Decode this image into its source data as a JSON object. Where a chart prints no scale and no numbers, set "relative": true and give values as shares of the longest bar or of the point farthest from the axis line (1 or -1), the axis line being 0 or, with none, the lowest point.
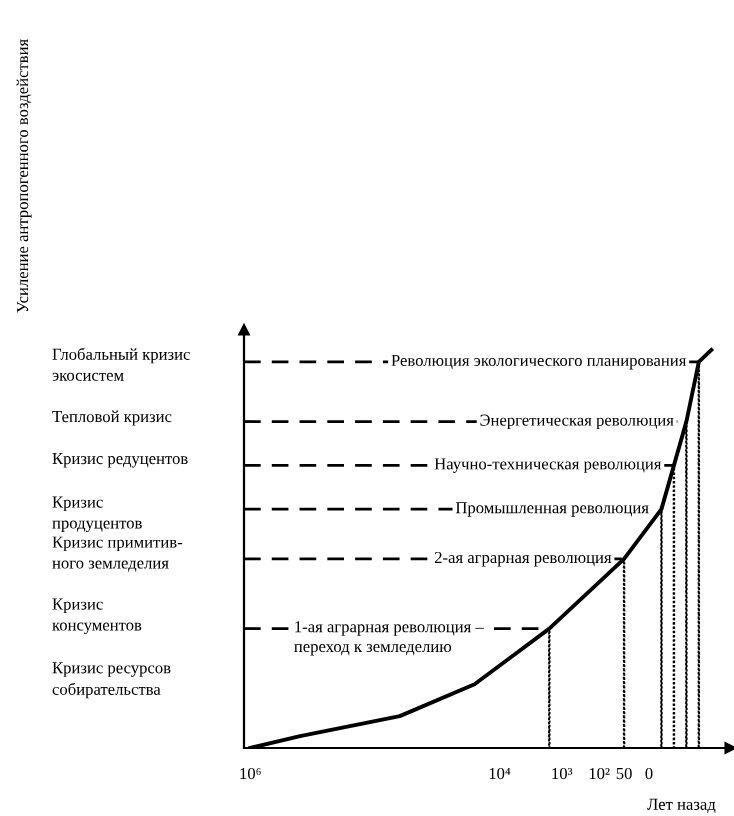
{
  "chart_data": {
    "type": "line",
    "relative": true,
    "xlabel": "Лет назад",
    "categories": [
      "10⁶",
      null,
      null,
      null,
      null,
      null,
      null,
      null,
      null,
      null,
      null,
      null,
      null,
      null,
      null,
      null,
      null,
      null,
      null,
      null,
      "10⁴",
      null,
      null,
      null,
      null,
      "10³",
      null,
      null,
      "10²",
      null,
      "50",
      null,
      "0",
      null,
      null,
      null,
      null,
      null,
      null
    ],
    "series": [
      {
        "color": "#000000",
        "values": [
          0,
          null,
          null,
          null,
          0.03,
          null,
          null,
          null,
          null,
          null,
          null,
          null,
          0.08,
          null,
          null,
          null,
          null,
          null,
          0.16,
          null,
          null,
          null,
          null,
          null,
          0.3,
          null,
          null,
          null,
          null,
          null,
          0.475,
          null,
          null,
          0.6,
          0.71,
          0.82,
          0.97,
          1.0,
          null
        ]
      },
      {
        "type": "bar",
        "color": "#000000",
        "line_style": "dotted",
        "values": [
          null,
          null,
          null,
          null,
          null,
          null,
          null,
          null,
          null,
          null,
          null,
          null,
          null,
          null,
          null,
          null,
          null,
          null,
          null,
          null,
          null,
          null,
          null,
          null,
          0.3,
          null,
          null,
          null,
          null,
          null,
          0.475,
          null,
          null,
          0.6,
          0.71,
          0.82,
          0.97,
          null,
          null
        ]
      }
    ],
    "ref_lines": [
      {
        "axis": "y",
        "value": 0.97,
        "label": "Революция экологического планирования",
        "line_style": "dashed"
      },
      {
        "axis": "y",
        "value": 0.82,
        "label": "Энергетическая революция",
        "line_style": "dashed"
      },
      {
        "axis": "y",
        "value": 0.71,
        "label": "Научно-техническая революция",
        "line_style": "dashed"
      },
      {
        "axis": "y",
        "value": 0.6,
        "label": "Промышленная революция",
        "line_style": "dashed"
      },
      {
        "axis": "y",
        "value": 0.475,
        "label": "2-ая аграрная революция",
        "line_style": "dashed"
      },
      {
        "axis": "y",
        "value": 0.3,
        "label": "1-ая аграрная революция –\nпереход к земледелию",
        "line_style": "dashed"
      }
    ],
    "annotations": [
      "Усиление антропогенного воздействия",
      "Глобальный кризис\nэкосистем",
      "Тепловой кризис",
      "Кризис редуцентов",
      "Кризис\nпродуцентов",
      "Кризис примитив-\nного земледелия",
      "Кризис\nконсументов",
      "Кризис ресурсов\nсобирательства"
    ],
    "grid": false,
    "legend": false
  }
}
